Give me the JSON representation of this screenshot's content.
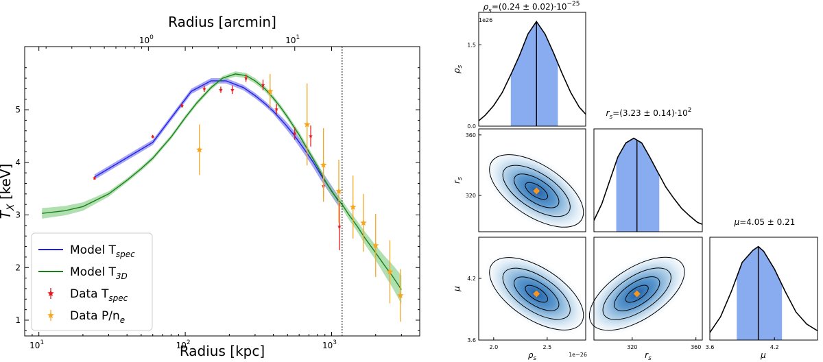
{
  "chart_data": [
    {
      "type": "line",
      "title": "",
      "xlabel": "Radius [kpc]",
      "ylabel": "T_X [keV]",
      "top_xlabel": "Radius [arcmin]",
      "xscale": "log",
      "xlim": [
        8,
        4000
      ],
      "ylim": [
        0.7,
        6.2
      ],
      "x_ticks": [
        {
          "v": 10,
          "t": "10"
        },
        {
          "v": 100,
          "t": "10"
        },
        {
          "v": 1000,
          "t": "10"
        }
      ],
      "x_tick_exps": [
        "1",
        "2",
        "3"
      ],
      "y_ticks": [
        {
          "v": 1,
          "t": "1"
        },
        {
          "v": 2,
          "t": "2"
        },
        {
          "v": 3,
          "t": "3"
        },
        {
          "v": 4,
          "t": "4"
        },
        {
          "v": 5,
          "t": "5"
        }
      ],
      "top_ticks": [
        {
          "v": 56,
          "t": "10",
          "e": "0"
        },
        {
          "v": 560,
          "t": "10",
          "e": "1"
        }
      ],
      "vline_x": 1180,
      "series": [
        {
          "name": "Model T_spec",
          "kind": "model",
          "color": "#1f1fe8",
          "band": "#8080f0",
          "x": [
            24,
            60,
            110,
            150,
            190,
            250,
            300,
            350,
            400,
            480,
            550,
            650,
            750,
            850,
            950,
            1050,
            1130
          ],
          "y": [
            3.72,
            4.38,
            5.35,
            5.55,
            5.55,
            5.42,
            5.27,
            5.12,
            4.97,
            4.73,
            4.53,
            4.25,
            4.0,
            3.75,
            3.55,
            3.37,
            3.24
          ],
          "err": [
            0.05,
            0.05,
            0.05,
            0.05,
            0.05,
            0.05,
            0.05,
            0.05,
            0.05,
            0.07,
            0.08,
            0.09,
            0.1,
            0.1,
            0.1,
            0.1,
            0.1
          ]
        },
        {
          "name": "Model T_3D",
          "kind": "model",
          "color": "#1a7f1a",
          "band": "#8fd18f",
          "x": [
            10.5,
            15,
            20,
            30,
            40,
            50,
            60,
            80,
            100,
            120,
            150,
            180,
            220,
            260,
            300,
            350,
            400,
            450,
            500,
            600,
            700,
            800,
            900,
            1000,
            1100,
            1180,
            1300,
            1500,
            1700,
            2000,
            2300,
            2600,
            3000
          ],
          "y": [
            3.03,
            3.08,
            3.16,
            3.4,
            3.66,
            3.88,
            4.08,
            4.48,
            4.85,
            5.13,
            5.42,
            5.6,
            5.68,
            5.65,
            5.55,
            5.4,
            5.22,
            5.04,
            4.86,
            4.52,
            4.2,
            3.92,
            3.66,
            3.45,
            3.3,
            3.2,
            3.02,
            2.78,
            2.55,
            2.28,
            2.04,
            1.84,
            1.58
          ],
          "err": [
            0.1,
            0.09,
            0.08,
            0.05,
            0.04,
            0.04,
            0.04,
            0.04,
            0.04,
            0.04,
            0.04,
            0.04,
            0.05,
            0.05,
            0.05,
            0.05,
            0.05,
            0.05,
            0.05,
            0.06,
            0.06,
            0.07,
            0.07,
            0.08,
            0.08,
            0.08,
            0.09,
            0.1,
            0.12,
            0.14,
            0.18,
            0.22,
            0.27
          ]
        },
        {
          "name": "Data T_spec",
          "kind": "data",
          "marker": "star",
          "color": "#e41a1c",
          "points": [
            {
              "x": 24,
              "y": 3.7,
              "yerr": 0.03
            },
            {
              "x": 60,
              "y": 4.49,
              "yerr": 0.03
            },
            {
              "x": 95,
              "y": 5.08,
              "yerr": 0.04
            },
            {
              "x": 135,
              "y": 5.4,
              "yerr": 0.06
            },
            {
              "x": 175,
              "y": 5.38,
              "yerr": 0.06
            },
            {
              "x": 210,
              "y": 5.38,
              "yerr": 0.08
            },
            {
              "x": 260,
              "y": 5.6,
              "yerr": 0.07
            },
            {
              "x": 340,
              "y": 5.47,
              "yerr": 0.1
            },
            {
              "x": 420,
              "y": 5.01,
              "yerr": 0.1
            },
            {
              "x": 560,
              "y": 4.55,
              "yerr": 0.12
            },
            {
              "x": 720,
              "y": 4.5,
              "yerr": 0.2
            },
            {
              "x": 880,
              "y": 3.55,
              "yerr": 0.2
            },
            {
              "x": 1130,
              "y": 2.78,
              "yerr": 0.45
            }
          ]
        },
        {
          "name": "Data P/n_e",
          "kind": "data",
          "marker": "star",
          "color": "#f5a623",
          "points": [
            {
              "x": 125,
              "y": 4.24,
              "yerr": 0.48
            },
            {
              "x": 380,
              "y": 5.35,
              "yerr": 0.33
            },
            {
              "x": 680,
              "y": 4.72,
              "yerr": 0.78
            },
            {
              "x": 880,
              "y": 3.95,
              "yerr": 0.7
            },
            {
              "x": 1120,
              "y": 3.45,
              "yerr": 0.6
            },
            {
              "x": 1400,
              "y": 3.15,
              "yerr": 0.6
            },
            {
              "x": 1650,
              "y": 2.85,
              "yerr": 0.55
            },
            {
              "x": 2000,
              "y": 2.42,
              "yerr": 0.6
            },
            {
              "x": 2500,
              "y": 1.92,
              "yerr": 0.6
            },
            {
              "x": 2950,
              "y": 1.47,
              "yerr": 0.5
            }
          ]
        }
      ],
      "legend": [
        {
          "label": "Model T",
          "sub": "spec",
          "kind": "line",
          "color": "#1f1fe8"
        },
        {
          "label": "Model T",
          "sub": "3D",
          "kind": "line",
          "color": "#1a7f1a"
        },
        {
          "label": "Data T",
          "sub": "spec",
          "kind": "data",
          "color": "#e41a1c"
        },
        {
          "label": "Data P/n",
          "sub": "e",
          "kind": "data",
          "color": "#f5a623"
        }
      ],
      "legend_position": "lower-left"
    },
    {
      "type": "corner",
      "parameters": [
        "rho_s",
        "r_s",
        "mu"
      ],
      "param_labels": [
        "ρ",
        "r",
        "μ"
      ],
      "param_subs": [
        "s",
        "s",
        ""
      ],
      "ranges": [
        [
          1.86,
          2.86
        ],
        [
          296,
          364
        ],
        [
          3.6,
          4.6
        ]
      ],
      "best_fit": [
        2.4,
        323,
        4.05
      ],
      "titles": [
        {
          "text": "ρ",
          "sub": "s",
          "rest": "=(0.24 ± 0.02)·10",
          "sup": "−25"
        },
        {
          "text": "r",
          "sub": "s",
          "rest": "=(3.23 ± 0.14)·10",
          "sup": "2"
        },
        {
          "text": "μ",
          "sub": "",
          "rest": "=4.05 ± 0.21",
          "sup": ""
        }
      ],
      "offset_labels": [
        "1e26",
        "1e−26"
      ],
      "diag_ticks": {
        "rho_y": [
          {
            "v": 0.0,
            "t": "0.0"
          },
          {
            "v": 1.5,
            "t": "1.5"
          }
        ],
        "rho_x": [
          {
            "v": 2.0,
            "t": "2.0"
          },
          {
            "v": 2.5,
            "t": "2.5"
          }
        ],
        "rs": [
          {
            "v": 320,
            "t": "320"
          },
          {
            "v": 360,
            "t": "360"
          }
        ],
        "mu": [
          {
            "v": 3.6,
            "t": "3.6"
          },
          {
            "v": 4.2,
            "t": "4.2"
          }
        ]
      },
      "histograms": [
        {
          "x": [
            1.86,
            1.92,
            2.0,
            2.08,
            2.16,
            2.24,
            2.32,
            2.4,
            2.48,
            2.56,
            2.64,
            2.72,
            2.8,
            2.86
          ],
          "y": [
            0.1,
            0.2,
            0.38,
            0.62,
            0.95,
            1.3,
            1.7,
            1.93,
            1.7,
            1.35,
            0.97,
            0.62,
            0.35,
            0.22
          ],
          "ylim": [
            0,
            2.1
          ],
          "shade": [
            2.16,
            2.6
          ],
          "median": 2.4
        },
        {
          "x": [
            296,
            301,
            306,
            311,
            316,
            321,
            326,
            331,
            336,
            341,
            346,
            351,
            356,
            361,
            364
          ],
          "y": [
            0.12,
            0.3,
            0.55,
            0.8,
            0.95,
            1.0,
            0.95,
            0.8,
            0.64,
            0.48,
            0.36,
            0.25,
            0.17,
            0.1,
            0.08
          ],
          "ylim": [
            0,
            1.1
          ],
          "shade": [
            310,
            337
          ],
          "median": 323
        },
        {
          "x": [
            3.6,
            3.7,
            3.8,
            3.9,
            4.0,
            4.05,
            4.1,
            4.2,
            4.3,
            4.4,
            4.5,
            4.6
          ],
          "y": [
            0.08,
            0.25,
            0.52,
            0.83,
            0.96,
            1.0,
            0.95,
            0.76,
            0.52,
            0.3,
            0.17,
            0.1
          ],
          "ylim": [
            0,
            1.1
          ],
          "shade": [
            3.85,
            4.27
          ],
          "median": 4.05
        }
      ]
    }
  ]
}
